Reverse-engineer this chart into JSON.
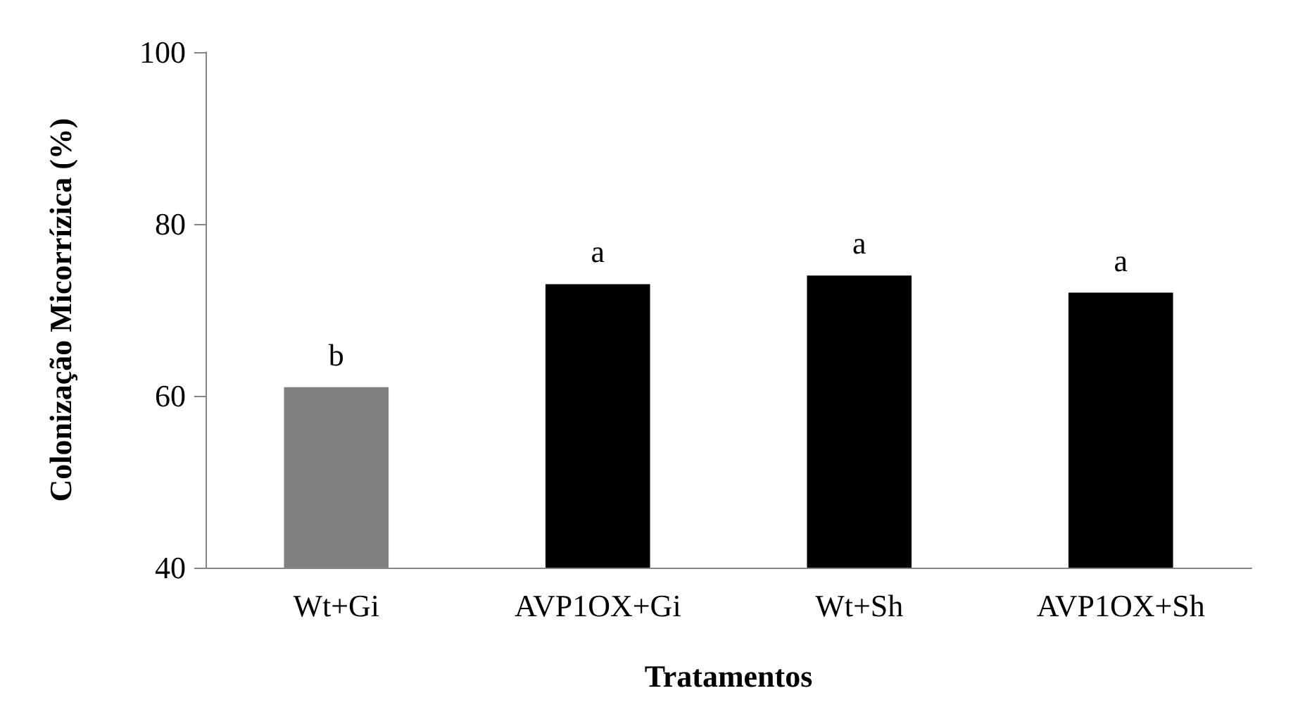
{
  "chart_data": {
    "type": "bar",
    "xlabel": "Tratamentos",
    "ylabel": "Colonização Micorrízica (%)",
    "categories": [
      "Wt+Gi",
      "AVP1OX+Gi",
      "Wt+Sh",
      "AVP1OX+Sh"
    ],
    "values": [
      61,
      73,
      74,
      72
    ],
    "colors": [
      "#808080",
      "#000000",
      "#000000",
      "#000000"
    ],
    "ylim": [
      40,
      100
    ],
    "yticks": [
      40,
      60,
      80,
      100
    ],
    "grid": false,
    "annotations": [
      {
        "text": "b",
        "x": "Wt+Gi",
        "y": 61
      },
      {
        "text": "a",
        "x": "AVP1OX+Gi",
        "y": 73
      },
      {
        "text": "a",
        "x": "Wt+Sh",
        "y": 74
      },
      {
        "text": "a",
        "x": "AVP1OX+Sh",
        "y": 72
      }
    ]
  }
}
